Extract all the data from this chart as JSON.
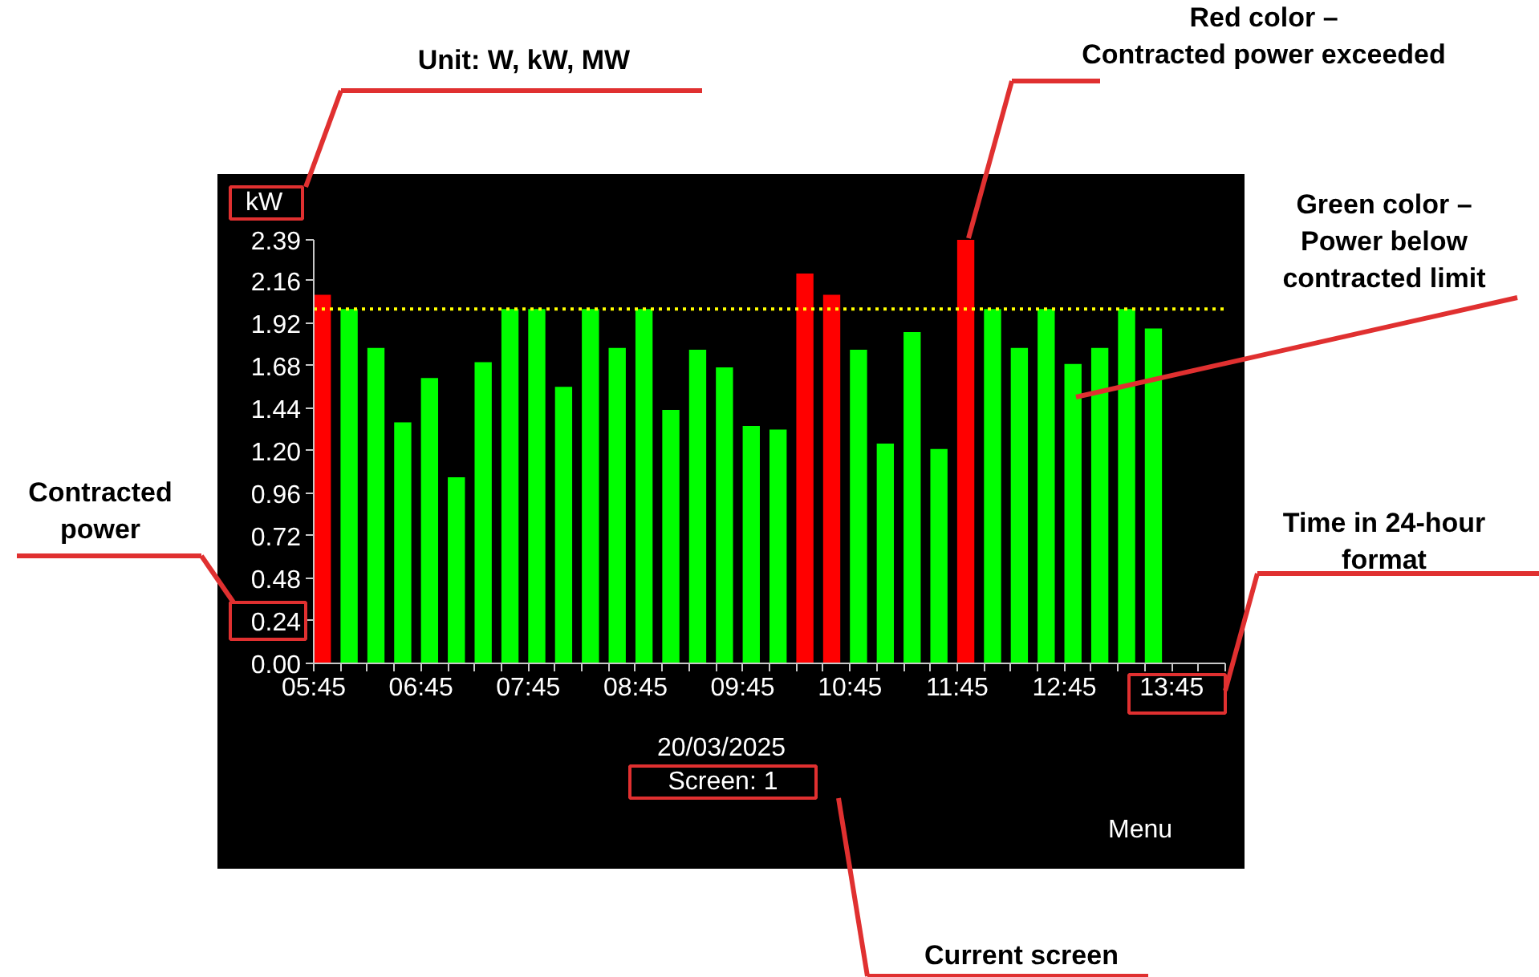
{
  "chart_data": {
    "type": "bar",
    "ylabel": "kW",
    "xlabel": "20/03/2025",
    "annotations": [
      "Unit: W, kW, MW",
      "Red color –\nContracted power exceeded",
      "Green color –\nPower below\ncontracted limit",
      "Contracted\npower",
      "Time in 24-hour\nformat",
      "Current screen",
      "Screen: 1",
      "Menu"
    ],
    "x": [
      5.83,
      6.08,
      6.33,
      6.58,
      6.83,
      7.08,
      7.33,
      7.58,
      7.83,
      8.08,
      8.33,
      8.58,
      8.83,
      9.08,
      9.33,
      9.58,
      9.83,
      10.08,
      10.33,
      10.58,
      10.83,
      11.08,
      11.33,
      11.58,
      11.83,
      12.08,
      12.33,
      12.58,
      12.83,
      13.08,
      13.33,
      13.58
    ],
    "values": [
      2.08,
      2.0,
      1.78,
      1.36,
      1.61,
      1.05,
      1.7,
      2.0,
      2.0,
      1.56,
      2.0,
      1.78,
      2.0,
      1.43,
      1.77,
      1.67,
      1.34,
      1.32,
      2.2,
      2.08,
      1.77,
      1.24,
      1.87,
      1.21,
      2.39,
      2.0,
      1.78,
      2.0,
      1.69,
      1.78,
      2.0,
      1.89
    ],
    "colors": [
      "#ff0000",
      "#00ff00",
      "#00ff00",
      "#00ff00",
      "#00ff00",
      "#00ff00",
      "#00ff00",
      "#00ff00",
      "#00ff00",
      "#00ff00",
      "#00ff00",
      "#00ff00",
      "#00ff00",
      "#00ff00",
      "#00ff00",
      "#00ff00",
      "#00ff00",
      "#00ff00",
      "#ff0000",
      "#ff0000",
      "#00ff00",
      "#00ff00",
      "#00ff00",
      "#00ff00",
      "#ff0000",
      "#00ff00",
      "#00ff00",
      "#00ff00",
      "#00ff00",
      "#00ff00",
      "#00ff00",
      "#00ff00"
    ],
    "xlim": [
      5.75,
      14.25
    ],
    "xticks": [
      {
        "value": 5.75,
        "label": "05:45"
      },
      {
        "value": 6.0,
        "label": null
      },
      {
        "value": 6.25,
        "label": null
      },
      {
        "value": 6.5,
        "label": null
      },
      {
        "value": 6.75,
        "label": "06:45"
      },
      {
        "value": 7.0,
        "label": null
      },
      {
        "value": 7.25,
        "label": null
      },
      {
        "value": 7.5,
        "label": null
      },
      {
        "value": 7.75,
        "label": "07:45"
      },
      {
        "value": 8.0,
        "label": null
      },
      {
        "value": 8.25,
        "label": null
      },
      {
        "value": 8.5,
        "label": null
      },
      {
        "value": 8.75,
        "label": "08:45"
      },
      {
        "value": 9.0,
        "label": null
      },
      {
        "value": 9.25,
        "label": null
      },
      {
        "value": 9.5,
        "label": null
      },
      {
        "value": 9.75,
        "label": "09:45"
      },
      {
        "value": 10.0,
        "label": null
      },
      {
        "value": 10.25,
        "label": null
      },
      {
        "value": 10.5,
        "label": null
      },
      {
        "value": 10.75,
        "label": "10:45"
      },
      {
        "value": 11.0,
        "label": null
      },
      {
        "value": 11.25,
        "label": null
      },
      {
        "value": 11.5,
        "label": null
      },
      {
        "value": 11.75,
        "label": "11:45"
      },
      {
        "value": 12.0,
        "label": null
      },
      {
        "value": 12.25,
        "label": null
      },
      {
        "value": 12.5,
        "label": null
      },
      {
        "value": 12.75,
        "label": "12:45"
      },
      {
        "value": 13.0,
        "label": null
      },
      {
        "value": 13.25,
        "label": null
      },
      {
        "value": 13.5,
        "label": null
      },
      {
        "value": 13.75,
        "label": "13:45"
      },
      {
        "value": 14.0,
        "label": null
      },
      {
        "value": 14.25,
        "label": null
      }
    ],
    "ylim": [
      0,
      2.39
    ],
    "yticks": [
      {
        "value": 0,
        "label": "0.00"
      },
      {
        "value": 0.24,
        "label": "0.24"
      },
      {
        "value": 0.48,
        "label": "0.48"
      },
      {
        "value": 0.72,
        "label": "0.72"
      },
      {
        "value": 0.96,
        "label": "0.96"
      },
      {
        "value": 1.2,
        "label": "1.20"
      },
      {
        "value": 1.44,
        "label": "1.44"
      },
      {
        "value": 1.68,
        "label": "1.68"
      },
      {
        "value": 1.92,
        "label": "1.92"
      },
      {
        "value": 2.16,
        "label": "2.16"
      },
      {
        "value": 2.39,
        "label": "2.39"
      }
    ],
    "ref_lines": [
      {
        "axis": "y",
        "value": 2.0,
        "color": "#ffff00",
        "line_style": "dotted"
      }
    ],
    "grid": false
  }
}
